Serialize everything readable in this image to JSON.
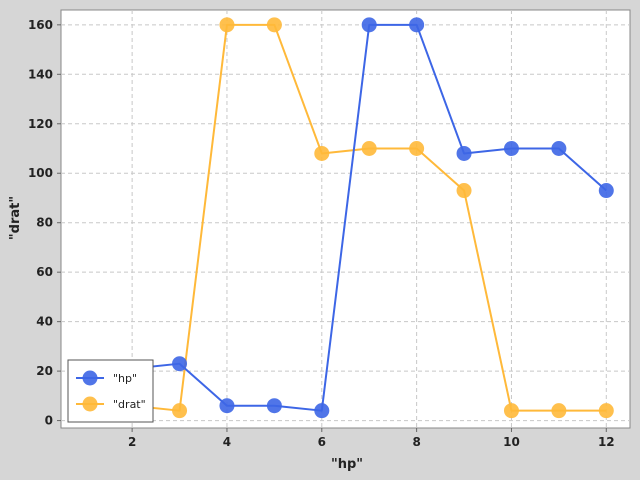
{
  "chart_data": {
    "type": "line",
    "xlabel": "\"hp\"",
    "ylabel": "\"drat\"",
    "xlim": [
      0.5,
      12.5
    ],
    "ylim": [
      -3,
      166
    ],
    "x_ticks": [
      2,
      4,
      6,
      8,
      10,
      12
    ],
    "y_ticks": [
      0,
      20,
      40,
      60,
      80,
      100,
      120,
      140,
      160
    ],
    "grid": true,
    "legend_position": "bottom-left",
    "series": [
      {
        "name": "\"hp\"",
        "color": "#3d66e6",
        "x": [
          1,
          2,
          3,
          4,
          5,
          6,
          7,
          8,
          9,
          10,
          11,
          12
        ],
        "values": [
          20,
          21,
          23,
          6,
          6,
          4,
          160,
          160,
          108,
          110,
          110,
          93
        ]
      },
      {
        "name": "\"drat\"",
        "color": "#ffb93a",
        "x": [
          1,
          2,
          3,
          4,
          5,
          6,
          7,
          8,
          9,
          10,
          11,
          12
        ],
        "values": [
          6,
          6,
          4,
          160,
          160,
          108,
          110,
          110,
          93,
          4,
          4,
          4
        ]
      }
    ]
  }
}
